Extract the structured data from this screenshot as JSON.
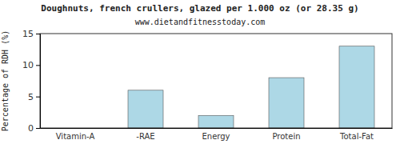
{
  "chart_data": {
    "type": "bar",
    "title": "Doughnuts, french crullers, glazed per 1.000 oz (or 28.35 g)",
    "subtitle": "www.dietandfitnesstoday.com",
    "y_label": "Percentage of RDH (%)",
    "categories": [
      "Vitamin-A",
      "-RAE",
      "Energy",
      "Protein",
      "Total-Fat"
    ],
    "values": [
      0,
      6,
      2,
      8,
      13
    ],
    "color": "#add8e6",
    "ylim": [
      0,
      15
    ],
    "yticks": [
      0,
      5,
      10,
      15
    ],
    "grid": false
  }
}
